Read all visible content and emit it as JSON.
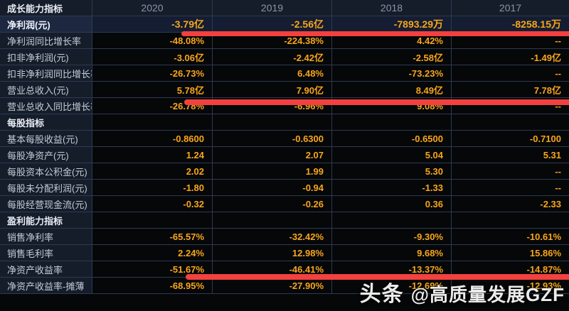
{
  "table": {
    "corner_label": "成长能力指标",
    "years": [
      "2020",
      "2019",
      "2018",
      "2017"
    ],
    "rows": [
      {
        "type": "data",
        "label": "净利润(元)",
        "values": [
          "-3.79亿",
          "-2.56亿",
          "-7893.29万",
          "-8258.15万"
        ],
        "highlight": true
      },
      {
        "type": "data",
        "label": "净利润同比增长率",
        "values": [
          "-48.08%",
          "-224.38%",
          "4.42%",
          "--"
        ]
      },
      {
        "type": "data",
        "label": "扣非净利润(元)",
        "values": [
          "-3.06亿",
          "-2.42亿",
          "-2.58亿",
          "-1.49亿"
        ]
      },
      {
        "type": "data",
        "label": "扣非净利润同比增长率",
        "values": [
          "-26.73%",
          "6.48%",
          "-73.23%",
          "--"
        ]
      },
      {
        "type": "data",
        "label": "营业总收入(元)",
        "values": [
          "5.78亿",
          "7.90亿",
          "8.49亿",
          "7.78亿"
        ]
      },
      {
        "type": "data",
        "label": "营业总收入同比增长率",
        "values": [
          "-26.78%",
          "-6.96%",
          "9.08%",
          "--"
        ]
      },
      {
        "type": "section",
        "label": "每股指标"
      },
      {
        "type": "data",
        "label": "基本每股收益(元)",
        "values": [
          "-0.8600",
          "-0.6300",
          "-0.6500",
          "-0.7100"
        ]
      },
      {
        "type": "data",
        "label": "每股净资产(元)",
        "values": [
          "1.24",
          "2.07",
          "5.04",
          "5.31"
        ]
      },
      {
        "type": "data",
        "label": "每股资本公积金(元)",
        "values": [
          "2.02",
          "1.99",
          "5.30",
          "--"
        ]
      },
      {
        "type": "data",
        "label": "每股未分配利润(元)",
        "values": [
          "-1.80",
          "-0.94",
          "-1.33",
          "--"
        ]
      },
      {
        "type": "data",
        "label": "每股经营现金流(元)",
        "values": [
          "-0.32",
          "-0.26",
          "0.36",
          "-2.33"
        ]
      },
      {
        "type": "section",
        "label": "盈利能力指标"
      },
      {
        "type": "data",
        "label": "销售净利率",
        "values": [
          "-65.57%",
          "-32.42%",
          "-9.30%",
          "-10.61%"
        ]
      },
      {
        "type": "data",
        "label": "销售毛利率",
        "values": [
          "2.24%",
          "12.98%",
          "9.68%",
          "15.86%"
        ]
      },
      {
        "type": "data",
        "label": "净资产收益率",
        "values": [
          "-51.67%",
          "-46.41%",
          "-13.37%",
          "-14.87%"
        ]
      },
      {
        "type": "data",
        "label": "净资产收益率-摊薄",
        "values": [
          "-68.95%",
          "-27.90%",
          "-12.69%",
          "-12.93%"
        ]
      }
    ]
  },
  "annotations": {
    "red_bar_rows": [
      "净利润(元)",
      "营业总收入(元)",
      "净资产收益率"
    ]
  },
  "watermark": {
    "brand": "头条",
    "handle": "@高质量发展GZF"
  },
  "colors": {
    "value_orange": "#f7a61c",
    "annotation_red": "#f2413f",
    "panel_navy": "#151d2b",
    "highlight_row_navy": "#141d31",
    "grid_line": "#2c3a52",
    "cell_black": "#060708"
  }
}
